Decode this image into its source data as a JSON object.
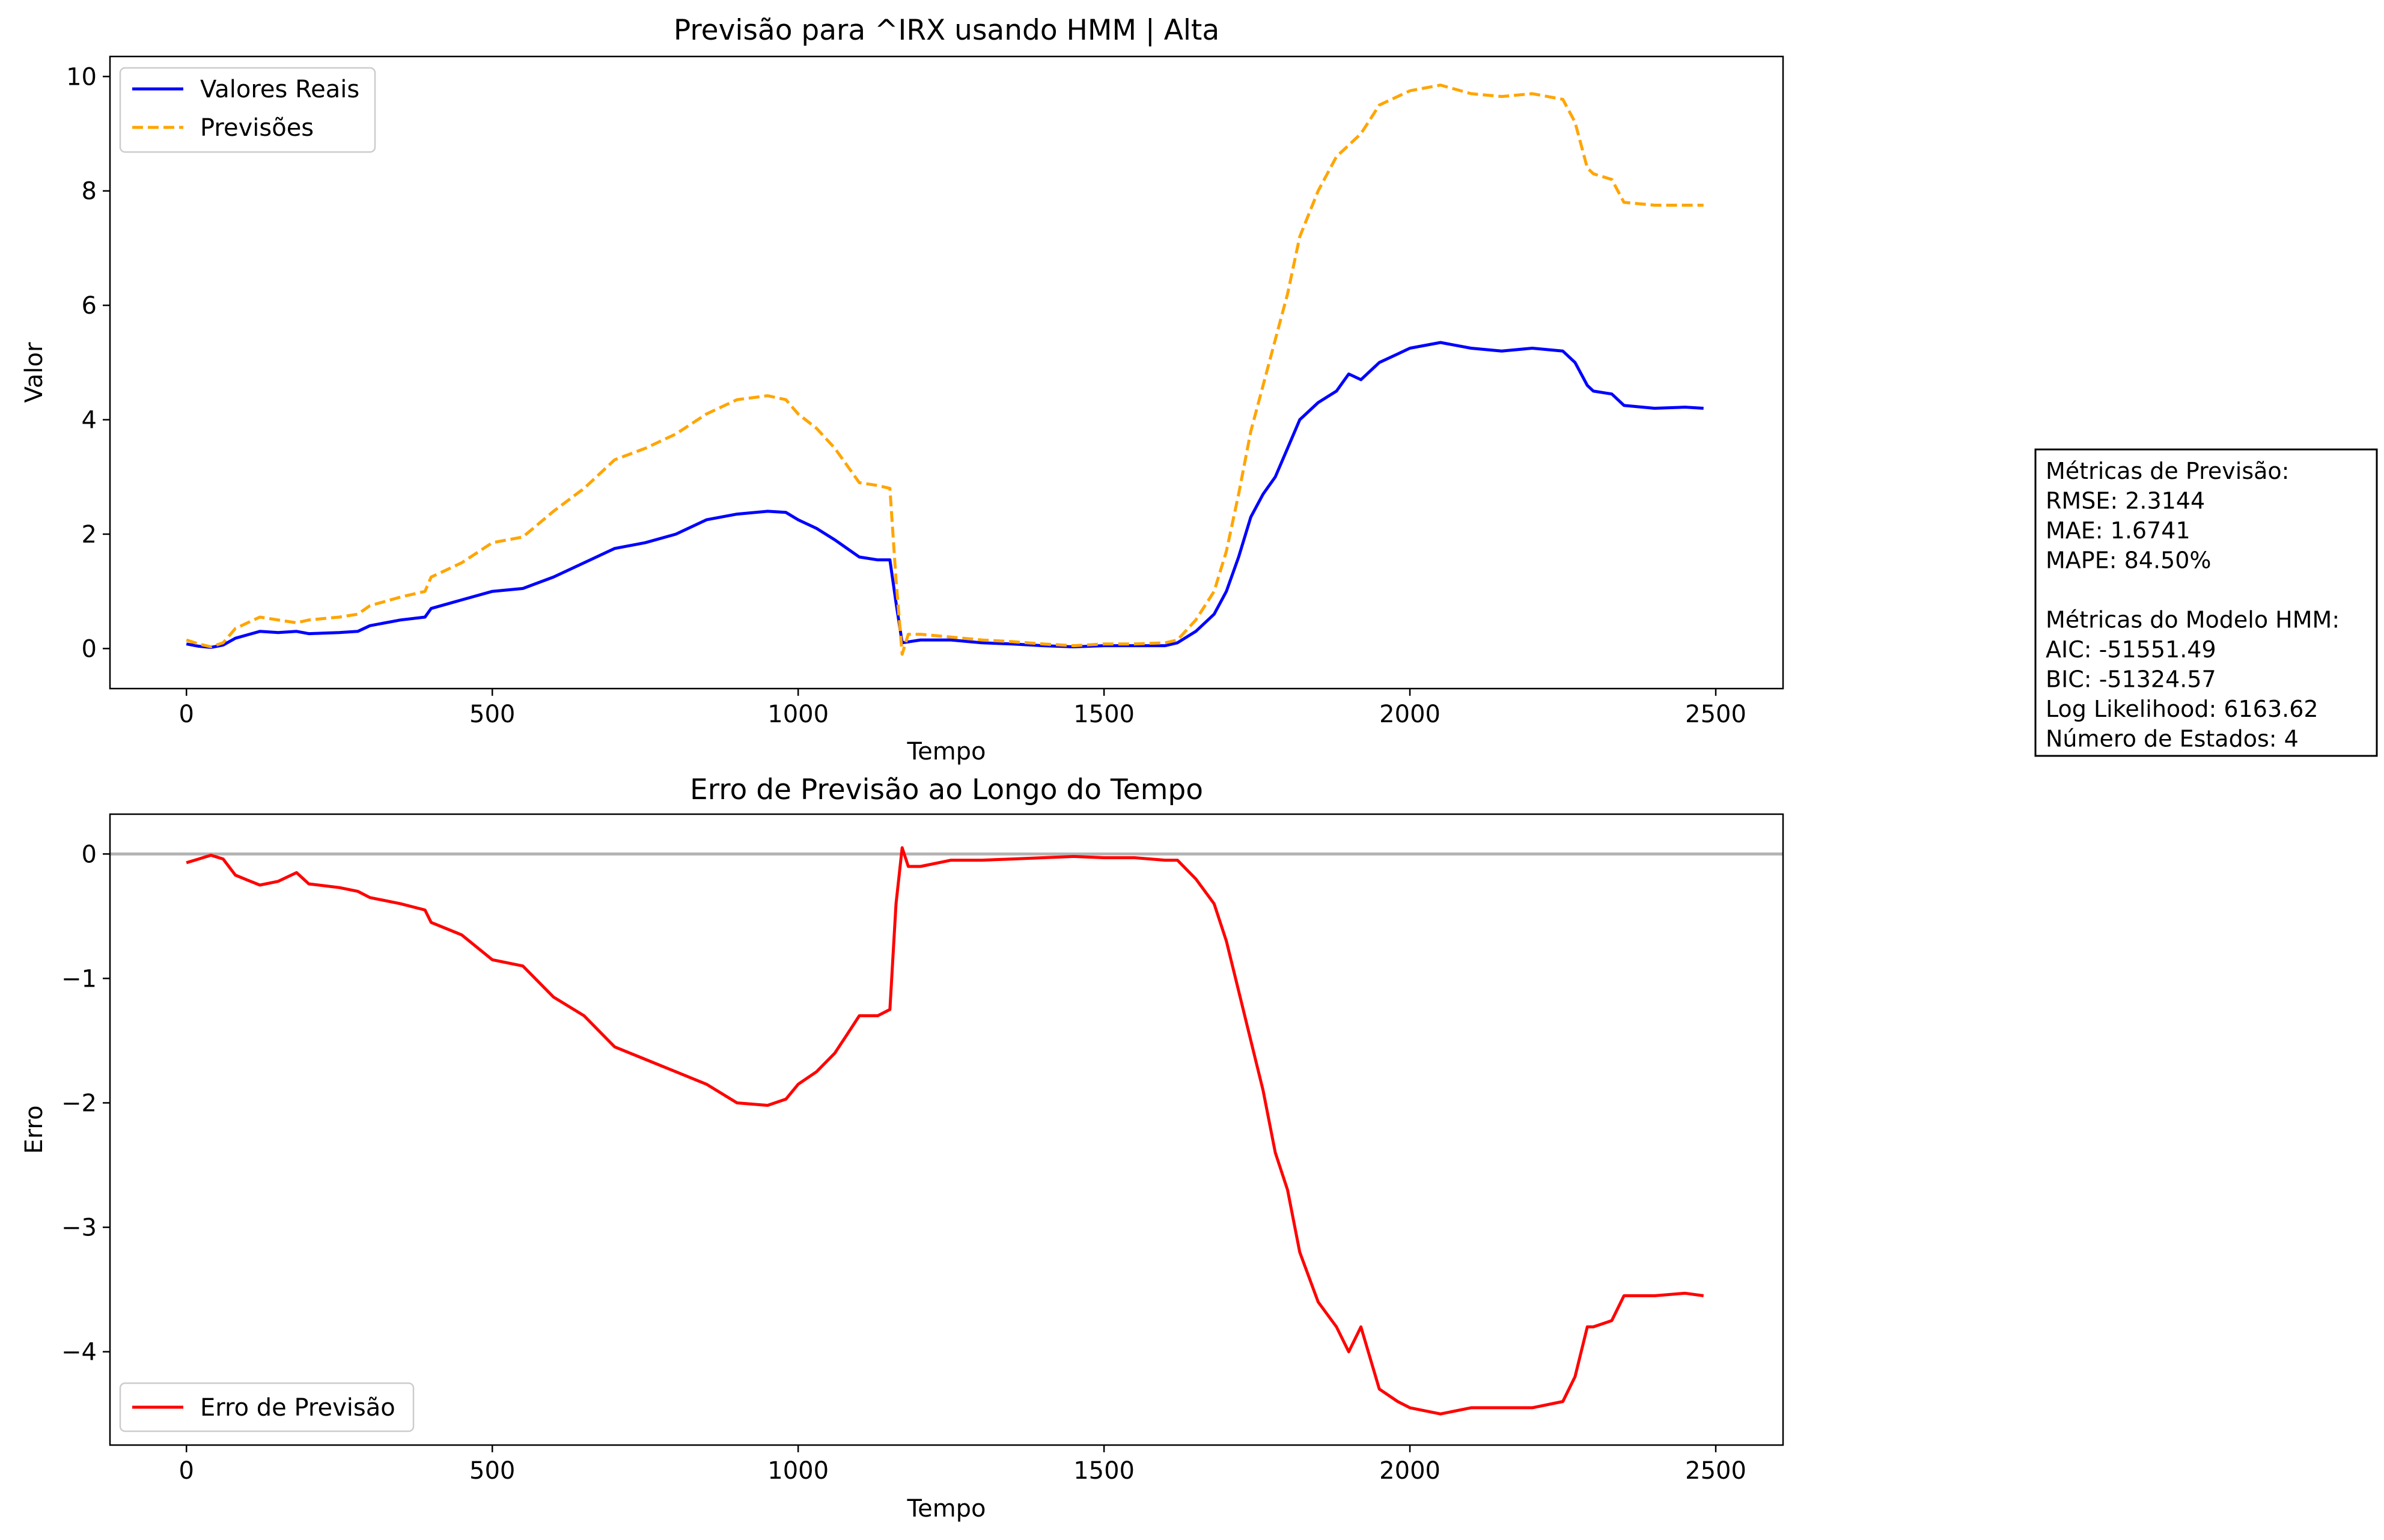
{
  "colors": {
    "real": "#0000ff",
    "forecast": "#ffa500",
    "error": "#ff0000",
    "zero_line": "#b3b3b3"
  },
  "metrics_box": {
    "lines": [
      "Métricas de Previsão:",
      "RMSE: 2.3144",
      "MAE: 1.6741",
      "MAPE: 84.50%",
      "",
      "Métricas do Modelo HMM:",
      "AIC: -51551.49",
      "BIC: -51324.57",
      "Log Likelihood: 6163.62",
      "Número de Estados: 4"
    ]
  },
  "chart_data": [
    {
      "type": "line",
      "title": "Previsão para ^IRX usando HMM | Alta",
      "xlabel": "Tempo",
      "ylabel": "Valor",
      "xlim": [
        -125,
        2610
      ],
      "ylim": [
        -0.7,
        10.35
      ],
      "xticks": [
        0,
        500,
        1000,
        1500,
        2000,
        2500
      ],
      "yticks": [
        0,
        2,
        4,
        6,
        8,
        10
      ],
      "grid": false,
      "legend": "upper left",
      "series": [
        {
          "name": "Valores Reais",
          "style": "solid",
          "color_key": "real",
          "points": [
            [
              0,
              0.08
            ],
            [
              20,
              0.04
            ],
            [
              40,
              0.02
            ],
            [
              60,
              0.06
            ],
            [
              80,
              0.18
            ],
            [
              100,
              0.24
            ],
            [
              120,
              0.3
            ],
            [
              150,
              0.28
            ],
            [
              180,
              0.3
            ],
            [
              200,
              0.26
            ],
            [
              250,
              0.28
            ],
            [
              280,
              0.3
            ],
            [
              300,
              0.4
            ],
            [
              350,
              0.5
            ],
            [
              390,
              0.55
            ],
            [
              400,
              0.7
            ],
            [
              450,
              0.85
            ],
            [
              500,
              1.0
            ],
            [
              550,
              1.05
            ],
            [
              600,
              1.25
            ],
            [
              650,
              1.5
            ],
            [
              700,
              1.75
            ],
            [
              750,
              1.85
            ],
            [
              800,
              2.0
            ],
            [
              850,
              2.25
            ],
            [
              900,
              2.35
            ],
            [
              950,
              2.4
            ],
            [
              980,
              2.38
            ],
            [
              1000,
              2.25
            ],
            [
              1030,
              2.1
            ],
            [
              1060,
              1.9
            ],
            [
              1080,
              1.75
            ],
            [
              1100,
              1.6
            ],
            [
              1130,
              1.55
            ],
            [
              1150,
              1.55
            ],
            [
              1160,
              0.8
            ],
            [
              1170,
              0.1
            ],
            [
              1200,
              0.15
            ],
            [
              1250,
              0.15
            ],
            [
              1300,
              0.1
            ],
            [
              1350,
              0.08
            ],
            [
              1400,
              0.05
            ],
            [
              1450,
              0.03
            ],
            [
              1500,
              0.05
            ],
            [
              1550,
              0.05
            ],
            [
              1600,
              0.05
            ],
            [
              1620,
              0.1
            ],
            [
              1650,
              0.3
            ],
            [
              1680,
              0.6
            ],
            [
              1700,
              1.0
            ],
            [
              1720,
              1.6
            ],
            [
              1740,
              2.3
            ],
            [
              1760,
              2.7
            ],
            [
              1780,
              3.0
            ],
            [
              1800,
              3.5
            ],
            [
              1820,
              4.0
            ],
            [
              1850,
              4.3
            ],
            [
              1880,
              4.5
            ],
            [
              1900,
              4.8
            ],
            [
              1920,
              4.7
            ],
            [
              1950,
              5.0
            ],
            [
              1980,
              5.15
            ],
            [
              2000,
              5.25
            ],
            [
              2050,
              5.35
            ],
            [
              2100,
              5.25
            ],
            [
              2150,
              5.2
            ],
            [
              2200,
              5.25
            ],
            [
              2250,
              5.2
            ],
            [
              2270,
              5.0
            ],
            [
              2290,
              4.6
            ],
            [
              2300,
              4.5
            ],
            [
              2330,
              4.45
            ],
            [
              2350,
              4.25
            ],
            [
              2400,
              4.2
            ],
            [
              2450,
              4.22
            ],
            [
              2480,
              4.2
            ]
          ]
        },
        {
          "name": "Previsões",
          "style": "dashed",
          "color_key": "forecast",
          "points": [
            [
              0,
              0.15
            ],
            [
              20,
              0.08
            ],
            [
              40,
              0.03
            ],
            [
              60,
              0.1
            ],
            [
              80,
              0.35
            ],
            [
              100,
              0.45
            ],
            [
              120,
              0.55
            ],
            [
              150,
              0.5
            ],
            [
              180,
              0.45
            ],
            [
              200,
              0.5
            ],
            [
              250,
              0.55
            ],
            [
              280,
              0.6
            ],
            [
              300,
              0.75
            ],
            [
              350,
              0.9
            ],
            [
              390,
              1.0
            ],
            [
              400,
              1.25
            ],
            [
              450,
              1.5
            ],
            [
              500,
              1.85
            ],
            [
              550,
              1.95
            ],
            [
              600,
              2.4
            ],
            [
              650,
              2.8
            ],
            [
              700,
              3.3
            ],
            [
              750,
              3.5
            ],
            [
              800,
              3.75
            ],
            [
              850,
              4.1
            ],
            [
              900,
              4.35
            ],
            [
              950,
              4.42
            ],
            [
              980,
              4.35
            ],
            [
              1000,
              4.1
            ],
            [
              1030,
              3.85
            ],
            [
              1060,
              3.5
            ],
            [
              1080,
              3.2
            ],
            [
              1100,
              2.9
            ],
            [
              1130,
              2.85
            ],
            [
              1150,
              2.8
            ],
            [
              1160,
              1.2
            ],
            [
              1170,
              -0.1
            ],
            [
              1180,
              0.25
            ],
            [
              1200,
              0.25
            ],
            [
              1250,
              0.2
            ],
            [
              1300,
              0.15
            ],
            [
              1350,
              0.12
            ],
            [
              1400,
              0.08
            ],
            [
              1450,
              0.05
            ],
            [
              1500,
              0.08
            ],
            [
              1550,
              0.08
            ],
            [
              1600,
              0.1
            ],
            [
              1620,
              0.15
            ],
            [
              1650,
              0.5
            ],
            [
              1680,
              1.0
            ],
            [
              1700,
              1.7
            ],
            [
              1720,
              2.7
            ],
            [
              1740,
              3.8
            ],
            [
              1760,
              4.6
            ],
            [
              1780,
              5.4
            ],
            [
              1800,
              6.2
            ],
            [
              1820,
              7.2
            ],
            [
              1850,
              8.0
            ],
            [
              1880,
              8.6
            ],
            [
              1900,
              8.8
            ],
            [
              1920,
              9.0
            ],
            [
              1950,
              9.5
            ],
            [
              1980,
              9.65
            ],
            [
              2000,
              9.75
            ],
            [
              2050,
              9.85
            ],
            [
              2100,
              9.7
            ],
            [
              2150,
              9.65
            ],
            [
              2200,
              9.7
            ],
            [
              2250,
              9.6
            ],
            [
              2270,
              9.2
            ],
            [
              2290,
              8.4
            ],
            [
              2300,
              8.3
            ],
            [
              2330,
              8.2
            ],
            [
              2350,
              7.8
            ],
            [
              2400,
              7.75
            ],
            [
              2450,
              7.75
            ],
            [
              2480,
              7.75
            ]
          ]
        }
      ]
    },
    {
      "type": "line",
      "title": "Erro de Previsão ao Longo do Tempo",
      "xlabel": "Tempo",
      "ylabel": "Erro",
      "xlim": [
        -125,
        2610
      ],
      "ylim": [
        -4.75,
        0.32
      ],
      "xticks": [
        0,
        500,
        1000,
        1500,
        2000,
        2500
      ],
      "yticks": [
        0,
        -1,
        -2,
        -3,
        -4
      ],
      "grid": false,
      "legend": "lower left",
      "reference_line": 0,
      "series": [
        {
          "name": "Erro de Previsão",
          "style": "solid",
          "color_key": "error",
          "points": [
            [
              0,
              -0.07
            ],
            [
              20,
              -0.04
            ],
            [
              40,
              -0.01
            ],
            [
              60,
              -0.04
            ],
            [
              80,
              -0.17
            ],
            [
              100,
              -0.21
            ],
            [
              120,
              -0.25
            ],
            [
              150,
              -0.22
            ],
            [
              180,
              -0.15
            ],
            [
              200,
              -0.24
            ],
            [
              250,
              -0.27
            ],
            [
              280,
              -0.3
            ],
            [
              300,
              -0.35
            ],
            [
              350,
              -0.4
            ],
            [
              390,
              -0.45
            ],
            [
              400,
              -0.55
            ],
            [
              450,
              -0.65
            ],
            [
              500,
              -0.85
            ],
            [
              550,
              -0.9
            ],
            [
              600,
              -1.15
            ],
            [
              650,
              -1.3
            ],
            [
              700,
              -1.55
            ],
            [
              750,
              -1.65
            ],
            [
              800,
              -1.75
            ],
            [
              850,
              -1.85
            ],
            [
              900,
              -2.0
            ],
            [
              950,
              -2.02
            ],
            [
              980,
              -1.97
            ],
            [
              1000,
              -1.85
            ],
            [
              1030,
              -1.75
            ],
            [
              1060,
              -1.6
            ],
            [
              1080,
              -1.45
            ],
            [
              1100,
              -1.3
            ],
            [
              1130,
              -1.3
            ],
            [
              1150,
              -1.25
            ],
            [
              1160,
              -0.4
            ],
            [
              1170,
              0.05
            ],
            [
              1180,
              -0.1
            ],
            [
              1200,
              -0.1
            ],
            [
              1250,
              -0.05
            ],
            [
              1300,
              -0.05
            ],
            [
              1350,
              -0.04
            ],
            [
              1400,
              -0.03
            ],
            [
              1450,
              -0.02
            ],
            [
              1500,
              -0.03
            ],
            [
              1550,
              -0.03
            ],
            [
              1600,
              -0.05
            ],
            [
              1620,
              -0.05
            ],
            [
              1650,
              -0.2
            ],
            [
              1680,
              -0.4
            ],
            [
              1700,
              -0.7
            ],
            [
              1720,
              -1.1
            ],
            [
              1740,
              -1.5
            ],
            [
              1760,
              -1.9
            ],
            [
              1780,
              -2.4
            ],
            [
              1800,
              -2.7
            ],
            [
              1820,
              -3.2
            ],
            [
              1850,
              -3.6
            ],
            [
              1880,
              -3.8
            ],
            [
              1900,
              -4.0
            ],
            [
              1920,
              -3.8
            ],
            [
              1950,
              -4.3
            ],
            [
              1980,
              -4.4
            ],
            [
              2000,
              -4.45
            ],
            [
              2050,
              -4.5
            ],
            [
              2100,
              -4.45
            ],
            [
              2150,
              -4.45
            ],
            [
              2200,
              -4.45
            ],
            [
              2250,
              -4.4
            ],
            [
              2270,
              -4.2
            ],
            [
              2290,
              -3.8
            ],
            [
              2300,
              -3.8
            ],
            [
              2330,
              -3.75
            ],
            [
              2350,
              -3.55
            ],
            [
              2400,
              -3.55
            ],
            [
              2450,
              -3.53
            ],
            [
              2480,
              -3.55
            ]
          ]
        }
      ]
    }
  ]
}
